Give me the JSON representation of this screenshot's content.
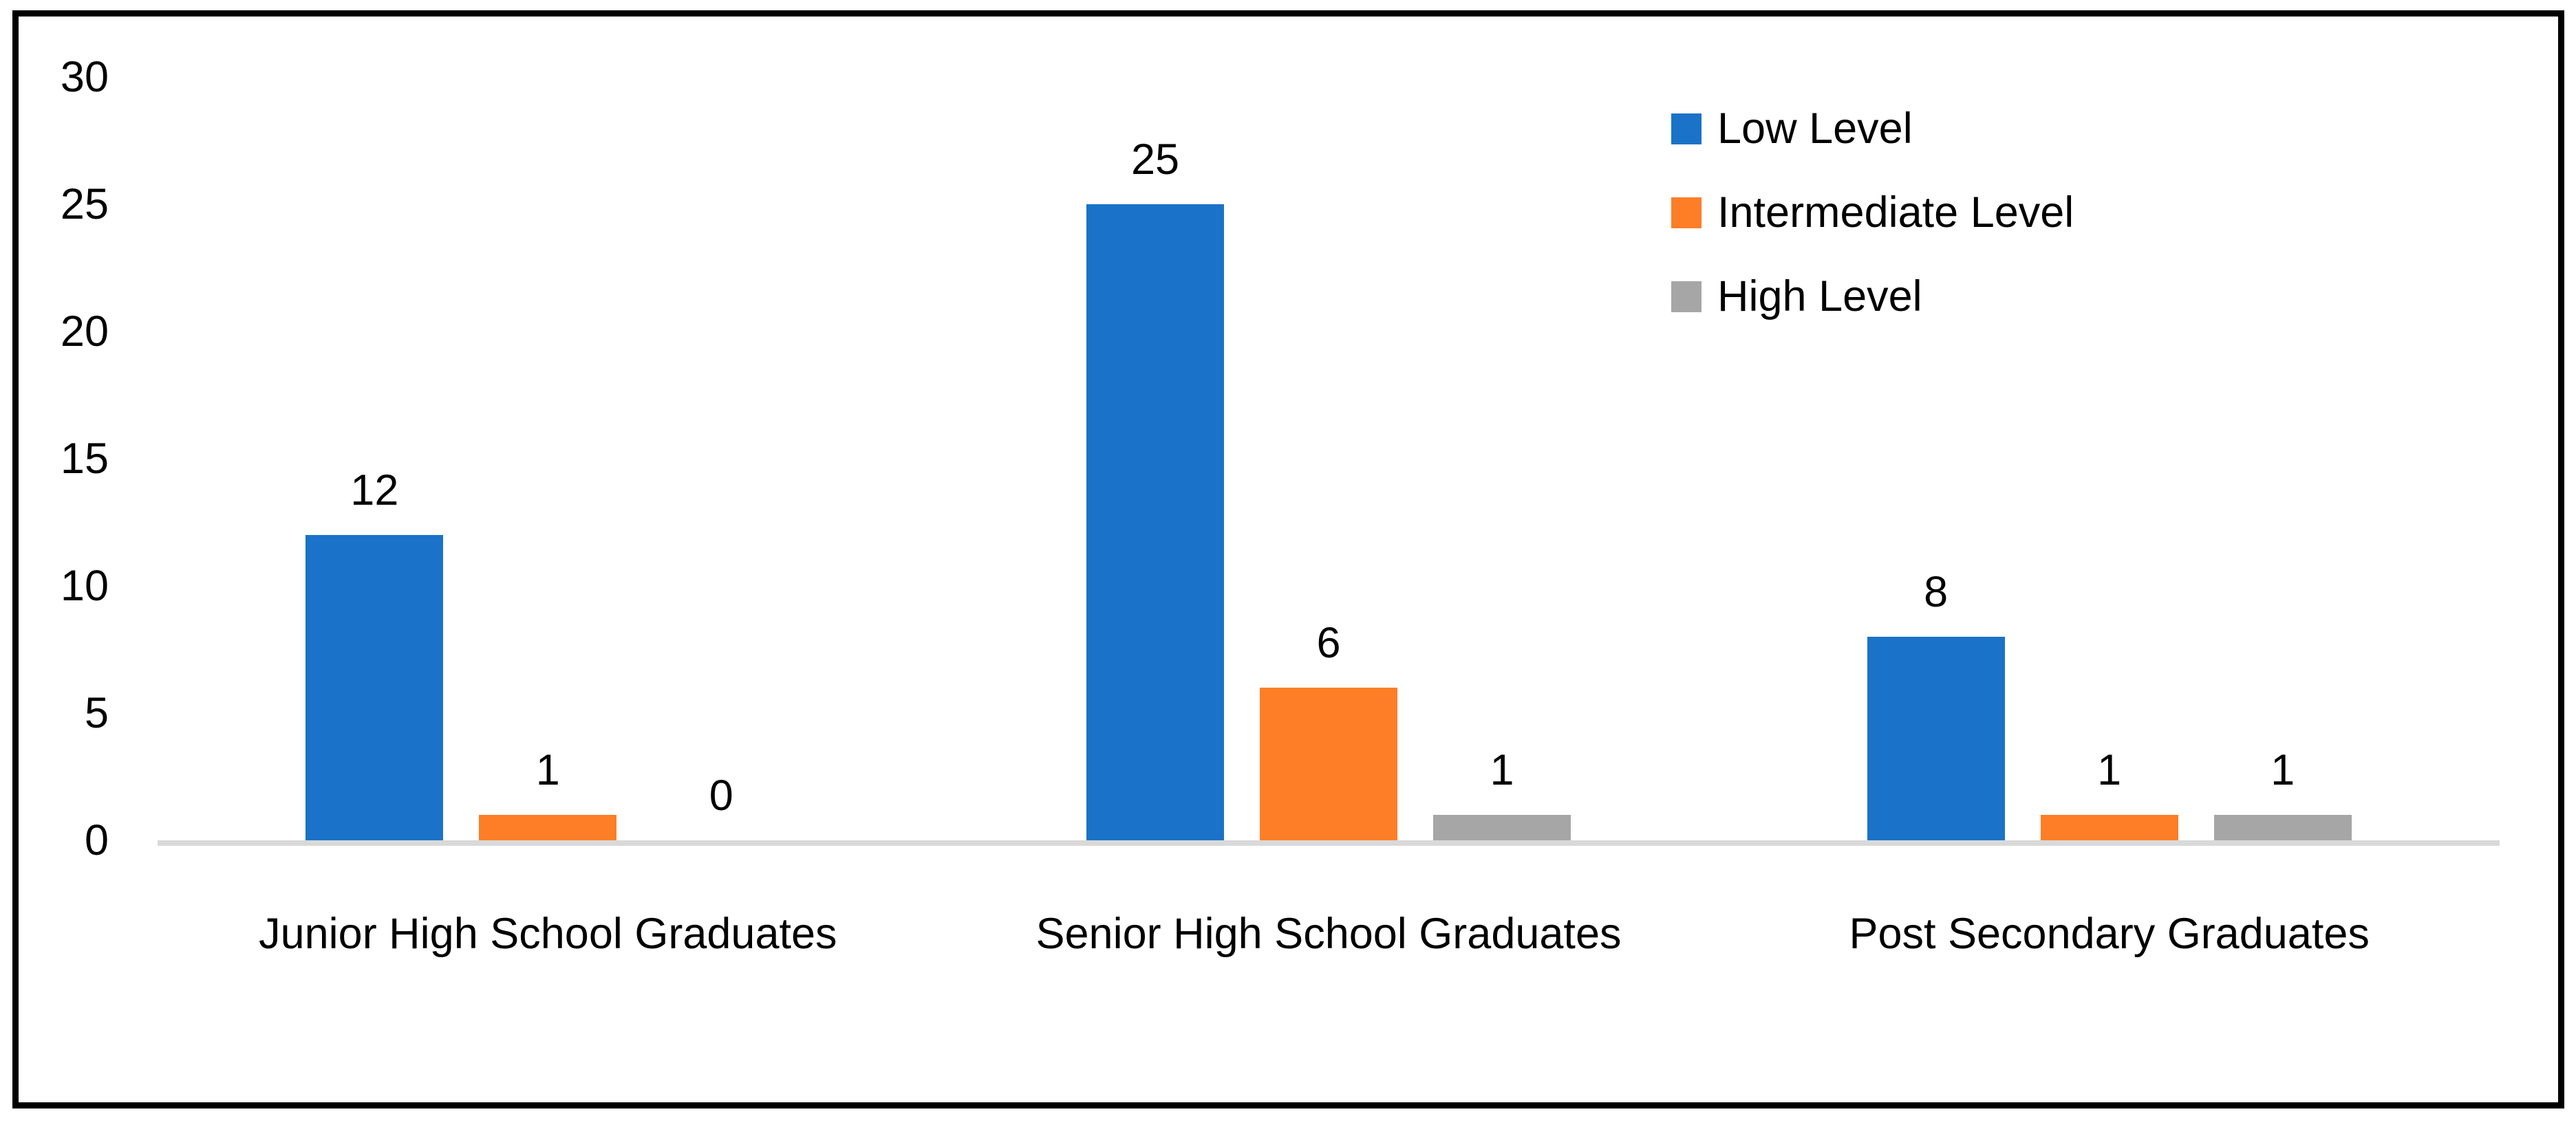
{
  "chart_data": {
    "type": "bar",
    "title": "",
    "categories": [
      "Junior High School Graduates",
      "Senior High School Graduates",
      "Post Secondary Graduates"
    ],
    "series": [
      {
        "name": "Low Level",
        "color": "#1A73C8",
        "values": [
          12,
          25,
          8
        ]
      },
      {
        "name": "Intermediate Level",
        "color": "#FD7E27",
        "values": [
          1,
          6,
          1
        ]
      },
      {
        "name": "High Level",
        "color": "#A6A6A6",
        "values": [
          0,
          1,
          1
        ]
      }
    ],
    "xlabel": "",
    "ylabel": "",
    "ylim": [
      0,
      30
    ],
    "yticks": [
      0,
      5,
      10,
      15,
      20,
      25,
      30
    ],
    "grid": false,
    "value_labels": true,
    "legend_position": "top-right",
    "axis_line_color": "#D9D9D9",
    "frame_border_color": "#000000",
    "label_color": "#000000"
  }
}
